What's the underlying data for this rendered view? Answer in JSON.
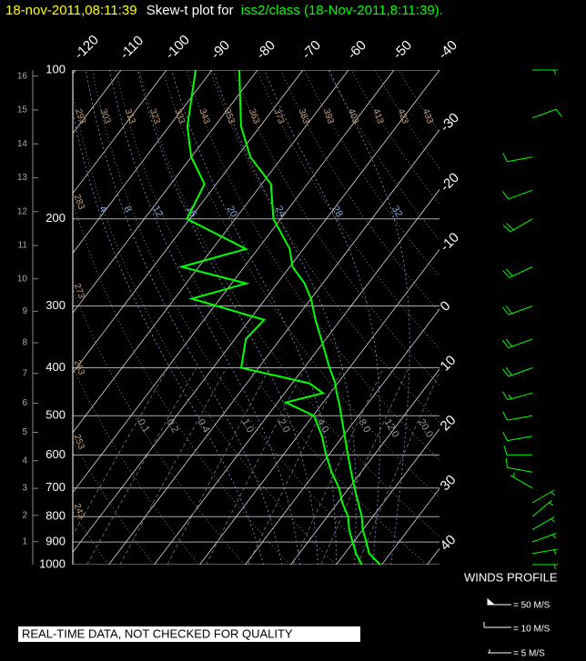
{
  "chart_data": {
    "type": "skewt",
    "title_date": "18-nov-2011,08:11:39",
    "title": "Skew-t plot for",
    "title_source": "iss2/class (18-Nov-2011,8:11:39).",
    "ylim": [
      100,
      1000
    ],
    "log_scale": true,
    "yticks": [
      100,
      200,
      300,
      400,
      500,
      600,
      700,
      800,
      900,
      1000
    ],
    "height_ticks": [
      1,
      2,
      3,
      4,
      5,
      6,
      7,
      8,
      9,
      10,
      11,
      12,
      13,
      14,
      15,
      16
    ],
    "xlim": [
      -120.6,
      -40
    ],
    "isotherms": [
      -120,
      -110,
      -100,
      -90,
      -80,
      -70,
      -60,
      -50,
      -40,
      -30,
      -20,
      -10,
      0,
      10,
      20,
      30,
      40
    ],
    "dry_adiabats": [
      243,
      253,
      263,
      273,
      283,
      293,
      303,
      313,
      323,
      333,
      343,
      353,
      363,
      373,
      383,
      393,
      403,
      413,
      423,
      433
    ],
    "moist_adiabats": [
      4,
      8,
      12,
      16,
      20,
      24,
      28,
      32
    ],
    "mixing_ratios": [
      0.1,
      0.2,
      0.4,
      {
        "value": 1,
        "label": "1.0"
      },
      {
        "value": 2,
        "label": "2.0"
      },
      {
        "value": 4,
        "label": "4.0"
      },
      {
        "value": 8,
        "label": "8.0"
      },
      {
        "value": 12,
        "label": "12.0"
      },
      {
        "value": 20,
        "label": "20.0"
      }
    ],
    "pressure": [
      1000,
      950,
      900,
      850,
      800,
      750,
      700,
      650,
      600,
      550,
      500,
      470,
      450,
      430,
      400,
      350,
      320,
      290,
      270,
      250,
      230,
      200,
      170,
      150,
      130,
      100
    ],
    "temperature": [
      29.6,
      25.4,
      22.8,
      20,
      17.6,
      14.5,
      11.2,
      7.8,
      4.2,
      0.4,
      -3.8,
      -6.5,
      -8.6,
      -10.5,
      -14.4,
      -21,
      -25.5,
      -30,
      -34,
      -39.4,
      -43,
      -51.6,
      -58,
      -67,
      -74.2,
      -84
    ],
    "dewpoint": [
      25.6,
      22.5,
      19.8,
      17,
      14.6,
      11,
      7.8,
      3.5,
      -0.6,
      -4.6,
      -9.8,
      -18.2,
      -11.6,
      -16.2,
      -33.8,
      -37.6,
      -36.8,
      -56.2,
      -46.8,
      -63.8,
      -52.6,
      -70.6,
      -72.6,
      -80,
      -86,
      -93.6
    ],
    "color": "#00ff00",
    "winds": {
      "label": "WINDS PROFILE",
      "pressure": [
        1000,
        950,
        900,
        850,
        800,
        750,
        700,
        650,
        600,
        550,
        500,
        450,
        400,
        350,
        300,
        250,
        200,
        175,
        150,
        125,
        100
      ],
      "speed": [
        3,
        5,
        6,
        5,
        4,
        5,
        6,
        8,
        9,
        10,
        12,
        15,
        18,
        20,
        22,
        20,
        18,
        12,
        10,
        8,
        6
      ],
      "direction": [
        90,
        80,
        70,
        60,
        50,
        60,
        300,
        280,
        270,
        260,
        260,
        255,
        250,
        250,
        250,
        245,
        240,
        250,
        260,
        70,
        90
      ],
      "color": "#00ff00",
      "legend": [
        {
          "value": 50,
          "label": "= 50 M/S"
        },
        {
          "value": 10,
          "label": "= 10 M/S"
        },
        {
          "value": 5,
          "label": "= 5 M/S"
        }
      ]
    },
    "note": "REAL-TIME DATA, NOT CHECKED FOR QUALITY"
  }
}
